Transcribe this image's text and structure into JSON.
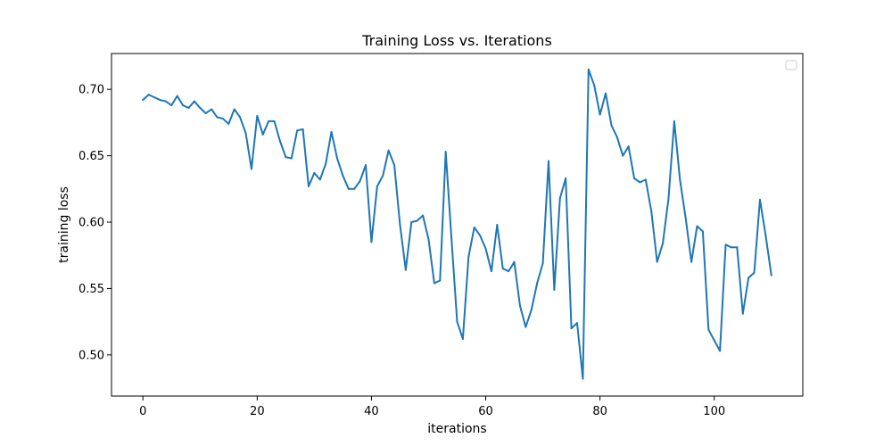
{
  "chart_data": {
    "type": "line",
    "title": "Training Loss vs. Iterations",
    "xlabel": "iterations",
    "ylabel": "training loss",
    "xlim": [
      -5.5,
      115.5
    ],
    "ylim": [
      0.469,
      0.727
    ],
    "xticks": [
      0,
      20,
      40,
      60,
      80,
      100
    ],
    "xtick_labels": [
      "0",
      "20",
      "40",
      "60",
      "80",
      "100"
    ],
    "yticks": [
      0.5,
      0.55,
      0.6,
      0.65,
      0.7
    ],
    "ytick_labels": [
      "0.50",
      "0.55",
      "0.60",
      "0.65",
      "0.70"
    ],
    "grid": false,
    "legend": {
      "placement": "top-right",
      "entries": []
    },
    "series_color": "#1f77b4",
    "series": [
      {
        "x": [
          0,
          1,
          2,
          3,
          4,
          5,
          6,
          7,
          8,
          9,
          10,
          11,
          12,
          13,
          14,
          15,
          16,
          17,
          18,
          19,
          20,
          21,
          22,
          23,
          24,
          25,
          26,
          27,
          28,
          29,
          30,
          31,
          32,
          33,
          34,
          35,
          36,
          37,
          38,
          39,
          40,
          41,
          42,
          43,
          44,
          45,
          46,
          47,
          48,
          49,
          50,
          51,
          52,
          53,
          54,
          55,
          56,
          57,
          58,
          59,
          60,
          61,
          62,
          63,
          64,
          65,
          66,
          67,
          68,
          69,
          70,
          71,
          72,
          73,
          74,
          75,
          76,
          77,
          78,
          79,
          80,
          81,
          82,
          83,
          84,
          85,
          86,
          87,
          88,
          89,
          90,
          91,
          92,
          93,
          94,
          95,
          96,
          97,
          98,
          99,
          100,
          101,
          102,
          103,
          104,
          105,
          106,
          107,
          108,
          109,
          110
        ],
        "values": [
          0.692,
          0.696,
          0.694,
          0.692,
          0.691,
          0.688,
          0.695,
          0.688,
          0.686,
          0.691,
          0.686,
          0.682,
          0.685,
          0.679,
          0.678,
          0.674,
          0.685,
          0.679,
          0.667,
          0.64,
          0.68,
          0.666,
          0.676,
          0.676,
          0.661,
          0.649,
          0.648,
          0.669,
          0.67,
          0.627,
          0.637,
          0.632,
          0.644,
          0.668,
          0.648,
          0.635,
          0.625,
          0.625,
          0.631,
          0.643,
          0.585,
          0.627,
          0.635,
          0.654,
          0.643,
          0.598,
          0.564,
          0.6,
          0.601,
          0.605,
          0.587,
          0.554,
          0.556,
          0.653,
          0.588,
          0.525,
          0.512,
          0.574,
          0.596,
          0.59,
          0.58,
          0.563,
          0.598,
          0.565,
          0.563,
          0.57,
          0.537,
          0.521,
          0.534,
          0.554,
          0.569,
          0.646,
          0.549,
          0.618,
          0.633,
          0.52,
          0.524,
          0.482,
          0.715,
          0.703,
          0.681,
          0.697,
          0.673,
          0.664,
          0.65,
          0.657,
          0.633,
          0.63,
          0.632,
          0.608,
          0.57,
          0.584,
          0.618,
          0.676,
          0.632,
          0.603,
          0.57,
          0.597,
          0.593,
          0.519,
          0.511,
          0.503,
          0.583,
          0.581,
          0.581,
          0.531,
          0.558,
          0.562,
          0.617,
          0.59,
          0.56
        ]
      }
    ]
  }
}
